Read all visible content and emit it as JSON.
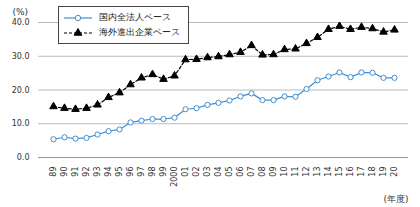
{
  "chart_data": {
    "type": "line",
    "x": [
      "89",
      "90",
      "91",
      "92",
      "93",
      "94",
      "95",
      "96",
      "97",
      "98",
      "99",
      "2000",
      "01",
      "02",
      "03",
      "04",
      "05",
      "06",
      "07",
      "08",
      "09",
      "10",
      "11",
      "12",
      "13",
      "14",
      "15",
      "16",
      "17",
      "18",
      "19",
      "20"
    ],
    "x_label": "(年度)",
    "y_label": "(%)",
    "series": [
      {
        "name": "国内全法人ベース",
        "color": "#3f8fd2",
        "marker": "circle",
        "line_style": "solid",
        "values": [
          5.4,
          6.0,
          5.6,
          5.8,
          6.8,
          7.8,
          8.3,
          10.4,
          10.9,
          11.4,
          11.4,
          11.8,
          14.3,
          14.6,
          15.6,
          16.2,
          16.9,
          18.1,
          19.0,
          17.0,
          17.0,
          18.1,
          18.0,
          20.3,
          22.9,
          24.0,
          25.2,
          23.8,
          25.2,
          25.1,
          23.6,
          23.6
        ]
      },
      {
        "name": "海外進出企業ベース",
        "color": "#000000",
        "marker": "triangle",
        "line_style": "dashed",
        "values": [
          15.1,
          14.6,
          14.3,
          14.6,
          15.6,
          17.8,
          19.2,
          21.6,
          23.6,
          24.6,
          23.2,
          24.2,
          29.0,
          29.1,
          29.6,
          29.9,
          30.5,
          31.2,
          33.2,
          30.4,
          30.5,
          32.0,
          32.2,
          33.8,
          35.6,
          38.0,
          38.9,
          38.0,
          38.6,
          38.2,
          37.2,
          37.8
        ]
      }
    ],
    "ylim": [
      0,
      40
    ],
    "yticks": [
      {
        "value": 0,
        "label": "0.0"
      },
      {
        "value": 10,
        "label": "10.0"
      },
      {
        "value": 20,
        "label": "20.0"
      },
      {
        "value": 30,
        "label": "30.0"
      },
      {
        "value": 40,
        "label": "40.0"
      }
    ],
    "grid": true,
    "legend": "upper left"
  }
}
